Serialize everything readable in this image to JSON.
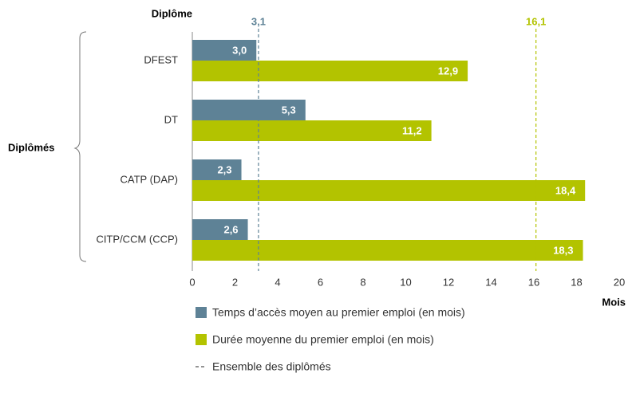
{
  "chart_data": {
    "type": "bar",
    "orientation": "horizontal",
    "category_axis_title": "Diplôme",
    "group_label": "Diplômés",
    "x_axis_title": "Mois",
    "categories": [
      "DFEST",
      "DT",
      "CATP (DAP)",
      "CITP/CCM (CCP)"
    ],
    "series": [
      {
        "name": "Temps d’accès moyen au premier emploi (en mois)",
        "color": "#5e8296",
        "values": [
          3.0,
          5.3,
          2.3,
          2.6
        ],
        "value_labels": [
          "3,0",
          "5,3",
          "2,3",
          "2,6"
        ]
      },
      {
        "name": "Durée moyenne du premier emploi (en mois)",
        "color": "#b3c300",
        "values": [
          12.9,
          11.2,
          18.4,
          18.3
        ],
        "value_labels": [
          "12,9",
          "11,2",
          "18,4",
          "18,3"
        ]
      }
    ],
    "reference_lines": {
      "name": "Ensemble des diplômés",
      "values": [
        3.1,
        16.1
      ],
      "value_labels": [
        "3,1",
        "16,1"
      ],
      "colors": [
        "#5e8296",
        "#b3c300"
      ]
    },
    "xlim": [
      0,
      20
    ],
    "xticks": [
      0,
      2,
      4,
      6,
      8,
      10,
      12,
      14,
      16,
      18,
      20
    ],
    "grid": false
  }
}
